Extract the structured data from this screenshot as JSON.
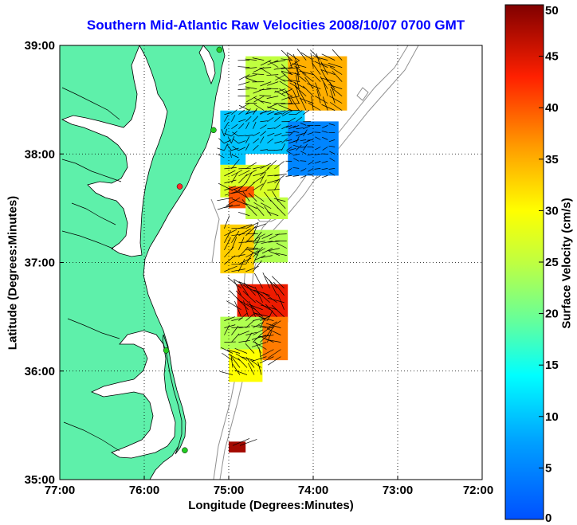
{
  "title": "Southern Mid-Atlantic Raw Velocities 2008/10/07 0700 GMT",
  "map": {
    "xlabel": "Longitude (Degrees:Minutes)",
    "ylabel": "Latitude (Degrees:Minutes)",
    "lon_range": [
      -77,
      -72
    ],
    "lat_range": [
      35,
      39
    ],
    "x_ticks": [
      "77:00",
      "76:00",
      "75:00",
      "74:00",
      "73:00",
      "72:00"
    ],
    "y_ticks": [
      "35:00",
      "36:00",
      "37:00",
      "38:00",
      "39:00"
    ],
    "grid": "dotted",
    "land_color": "#5ef0aa",
    "coast_color": "#000000",
    "bathymetry_color": "#909090",
    "vector_color": "#000000",
    "station_markers": [
      {
        "lon": -75.11,
        "lat": 38.96,
        "color": "#22cc22"
      },
      {
        "lon": -75.18,
        "lat": 38.22,
        "color": "#22cc22"
      },
      {
        "lon": -75.58,
        "lat": 37.7,
        "color": "#ff2a2a"
      },
      {
        "lon": -75.74,
        "lat": 36.19,
        "color": "#22cc22"
      },
      {
        "lon": -75.52,
        "lat": 35.27,
        "color": "#22cc22"
      }
    ]
  },
  "colorbar": {
    "label": "Surface Velocity (cm/s)",
    "ticks": [
      "0",
      "5",
      "10",
      "15",
      "20",
      "25",
      "30",
      "35",
      "40",
      "45",
      "50"
    ],
    "range": [
      0,
      50
    ],
    "colormap": "jet"
  },
  "chart_data": {
    "type": "heatmap",
    "title": "Southern Mid-Atlantic Raw Velocities 2008/10/07 0700 GMT",
    "xlabel": "Longitude (Degrees:Minutes)",
    "ylabel": "Latitude (Degrees:Minutes)",
    "xlim": [
      -77,
      -72
    ],
    "ylim": [
      35,
      39
    ],
    "color_label": "Surface Velocity (cm/s)",
    "color_range": [
      0,
      50
    ],
    "regions": [
      {
        "lon": [
          -74.8,
          -74.1
        ],
        "lat": [
          38.4,
          38.9
        ],
        "speed": 25
      },
      {
        "lon": [
          -74.3,
          -73.6
        ],
        "lat": [
          38.4,
          38.9
        ],
        "speed": 35
      },
      {
        "lon": [
          -75.1,
          -74.1
        ],
        "lat": [
          38.0,
          38.4
        ],
        "speed": 10
      },
      {
        "lon": [
          -74.3,
          -73.7
        ],
        "lat": [
          37.8,
          38.3
        ],
        "speed": 5
      },
      {
        "lon": [
          -75.1,
          -74.8
        ],
        "lat": [
          37.9,
          38.2
        ],
        "speed": 10
      },
      {
        "lon": [
          -75.1,
          -74.4
        ],
        "lat": [
          37.6,
          37.9
        ],
        "speed": 27
      },
      {
        "lon": [
          -75.0,
          -74.7
        ],
        "lat": [
          37.5,
          37.7
        ],
        "speed": 40
      },
      {
        "lon": [
          -74.8,
          -74.3
        ],
        "lat": [
          37.4,
          37.6
        ],
        "speed": 25
      },
      {
        "lon": [
          -75.1,
          -74.7
        ],
        "lat": [
          36.9,
          37.35
        ],
        "speed": 33
      },
      {
        "lon": [
          -74.7,
          -74.3
        ],
        "lat": [
          37.0,
          37.3
        ],
        "speed": 24
      },
      {
        "lon": [
          -74.9,
          -74.3
        ],
        "lat": [
          36.45,
          36.8
        ],
        "speed": 44
      },
      {
        "lon": [
          -75.1,
          -74.5
        ],
        "lat": [
          36.2,
          36.5
        ],
        "speed": 24
      },
      {
        "lon": [
          -74.6,
          -74.3
        ],
        "lat": [
          36.1,
          36.5
        ],
        "speed": 38
      },
      {
        "lon": [
          -75.0,
          -74.6
        ],
        "lat": [
          35.9,
          36.2
        ],
        "speed": 30
      },
      {
        "lon": [
          -75.0,
          -74.8
        ],
        "lat": [
          35.25,
          35.35
        ],
        "speed": 48
      }
    ]
  }
}
